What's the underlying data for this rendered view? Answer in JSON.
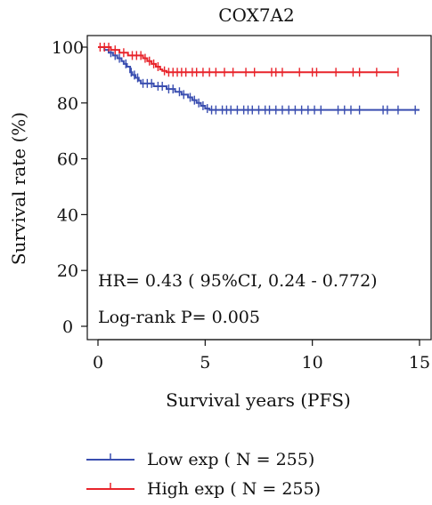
{
  "chart_data": {
    "type": "line",
    "subtype": "kaplan-meier",
    "title": "COX7A2",
    "xlabel": "Survival years (PFS)",
    "ylabel": "Survival rate (%)",
    "xlim": [
      0,
      15
    ],
    "ylim": [
      0,
      100
    ],
    "x_ticks": [
      0,
      5,
      10,
      15
    ],
    "y_ticks": [
      0,
      20,
      40,
      60,
      80,
      100
    ],
    "grid": false,
    "legend_position": "bottom",
    "annotations": [
      "HR= 0.43 ( 95%CI, 0.24 - 0.772)",
      "Log-rank P= 0.005"
    ],
    "series": [
      {
        "name": "Low exp ( N = 255)",
        "color": "#3a4eb0",
        "steps": [
          [
            0,
            100
          ],
          [
            0.3,
            99
          ],
          [
            0.5,
            98
          ],
          [
            0.7,
            97
          ],
          [
            0.9,
            96
          ],
          [
            1.1,
            95
          ],
          [
            1.2,
            94
          ],
          [
            1.35,
            93
          ],
          [
            1.5,
            91
          ],
          [
            1.6,
            90
          ],
          [
            1.75,
            89
          ],
          [
            1.9,
            88
          ],
          [
            2.0,
            87
          ],
          [
            2.6,
            86
          ],
          [
            3.2,
            85
          ],
          [
            3.6,
            84
          ],
          [
            3.9,
            83
          ],
          [
            4.2,
            82
          ],
          [
            4.4,
            81
          ],
          [
            4.6,
            80
          ],
          [
            4.8,
            79
          ],
          [
            5.0,
            78
          ],
          [
            5.2,
            77.5
          ],
          [
            15.0,
            77.5
          ]
        ],
        "censor_x": [
          0.6,
          0.8,
          1.0,
          1.3,
          1.55,
          1.7,
          1.85,
          2.1,
          2.3,
          2.5,
          2.8,
          3.0,
          3.3,
          3.5,
          3.8,
          4.0,
          4.3,
          4.5,
          4.7,
          4.9,
          5.1,
          5.3,
          5.5,
          5.8,
          6.0,
          6.2,
          6.5,
          6.8,
          7.0,
          7.2,
          7.5,
          7.8,
          8.0,
          8.3,
          8.6,
          8.9,
          9.2,
          9.5,
          9.8,
          10.1,
          10.4,
          11.2,
          11.5,
          11.8,
          12.2,
          13.3,
          13.5,
          14.0,
          14.8
        ]
      },
      {
        "name": "High exp ( N = 255)",
        "color": "#e8242b",
        "steps": [
          [
            0,
            100
          ],
          [
            0.6,
            99
          ],
          [
            1.0,
            98
          ],
          [
            1.4,
            97
          ],
          [
            2.1,
            96
          ],
          [
            2.3,
            95
          ],
          [
            2.5,
            94
          ],
          [
            2.7,
            93
          ],
          [
            2.9,
            92
          ],
          [
            3.0,
            91.5
          ],
          [
            3.2,
            91
          ],
          [
            14.0,
            91
          ]
        ],
        "censor_x": [
          0.1,
          0.3,
          0.5,
          0.8,
          1.2,
          1.6,
          1.8,
          2.0,
          2.2,
          2.4,
          2.6,
          2.8,
          3.1,
          3.3,
          3.5,
          3.7,
          3.9,
          4.1,
          4.4,
          4.6,
          4.9,
          5.2,
          5.5,
          5.9,
          6.3,
          6.9,
          7.3,
          8.1,
          8.3,
          8.6,
          9.4,
          10.0,
          10.2,
          11.1,
          11.9,
          12.2,
          13.0,
          14.0
        ]
      }
    ]
  }
}
